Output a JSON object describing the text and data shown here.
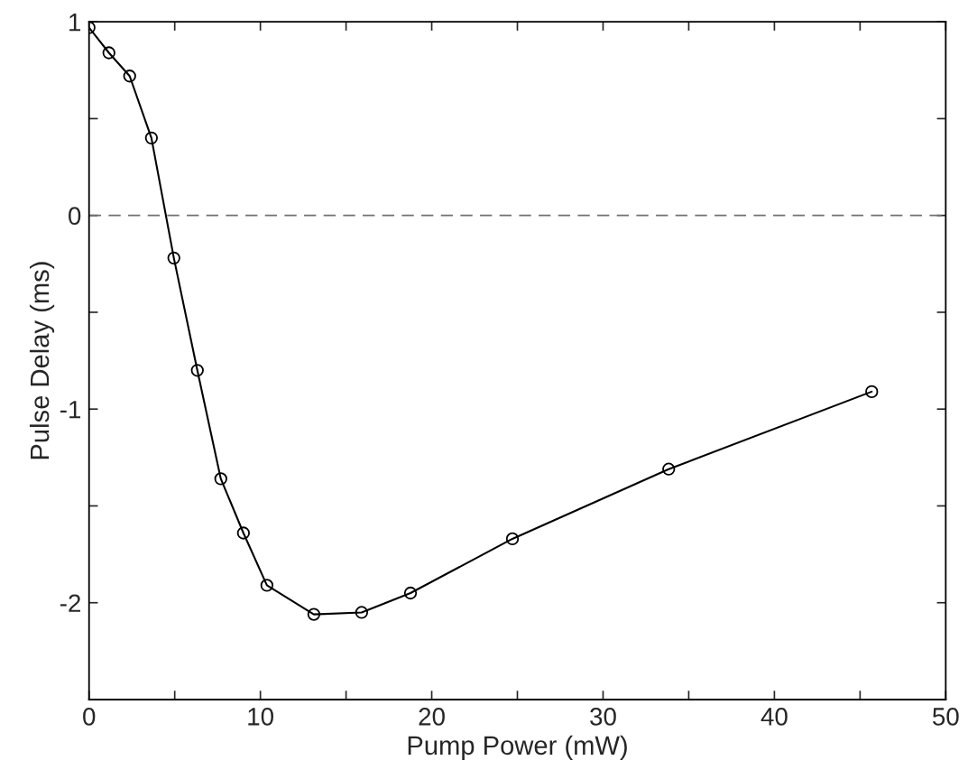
{
  "chart_data": {
    "type": "line",
    "xlabel": "Pump Power (mW)",
    "ylabel": "Pulse Delay (ms)",
    "x": [
      0,
      1.16,
      2.37,
      3.64,
      4.95,
      6.32,
      7.69,
      9.01,
      10.38,
      13.12,
      15.91,
      18.76,
      24.71,
      33.83,
      45.68
    ],
    "series": [
      {
        "color": "#000000",
        "values": [
          0.97,
          0.84,
          0.72,
          0.4,
          -0.22,
          -0.8,
          -1.36,
          -1.64,
          -1.91,
          -2.06,
          -2.05,
          -1.95,
          -1.67,
          -1.31,
          -0.91
        ]
      }
    ],
    "marker": "circle",
    "line_style": "solid",
    "xlim": [
      0,
      50
    ],
    "ylim": [
      -2.5,
      1
    ],
    "xticks": [
      0,
      {
        "value": 5,
        "label": null
      },
      10,
      {
        "value": 15,
        "label": null
      },
      20,
      {
        "value": 25,
        "label": null
      },
      30,
      {
        "value": 35,
        "label": null
      },
      40,
      {
        "value": 45,
        "label": null
      },
      50
    ],
    "yticks": [
      {
        "value": -2.5,
        "label": null
      },
      {
        "value": -2,
        "label": "-2"
      },
      {
        "value": -1.5,
        "label": null
      },
      {
        "value": -1,
        "label": "-1"
      },
      {
        "value": -0.5,
        "label": null
      },
      0,
      {
        "value": 0.5,
        "label": null
      },
      1
    ],
    "ref_lines": [
      {
        "axis": "y",
        "value": 0,
        "color": "#707070",
        "line_style": "dashed"
      }
    ],
    "grid": false,
    "legend": false
  }
}
